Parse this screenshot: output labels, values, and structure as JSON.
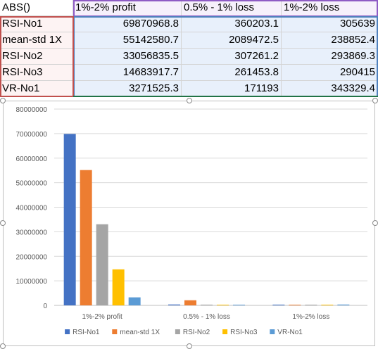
{
  "table": {
    "corner": "ABS()",
    "columns": [
      "1%-2% profit",
      "0.5% - 1% loss",
      "1%-2% loss"
    ],
    "rows": [
      {
        "label": "RSI-No1",
        "values": [
          "69870968.8",
          "360203.1",
          "305639"
        ]
      },
      {
        "label": "mean-std 1X",
        "values": [
          "55142580.7",
          "2089472.5",
          "238852.4"
        ]
      },
      {
        "label": "RSI-No2",
        "values": [
          "33056835.5",
          "307261.2",
          "293869.3"
        ]
      },
      {
        "label": "RSI-No3",
        "values": [
          "14683917.7",
          "261453.8",
          "290415"
        ]
      },
      {
        "label": "VR-No1",
        "values": [
          "3271525.3",
          "171193",
          "343329.4"
        ]
      }
    ]
  },
  "chart_data": {
    "type": "bar",
    "title": "",
    "xlabel": "",
    "ylabel": "",
    "categories": [
      "1%-2% profit",
      "0.5% - 1% loss",
      "1%-2% loss"
    ],
    "ylim": [
      0,
      80000000
    ],
    "yticks": [
      "0",
      "10000000",
      "20000000",
      "30000000",
      "40000000",
      "50000000",
      "60000000",
      "70000000",
      "80000000"
    ],
    "grid": true,
    "legend": "bottom",
    "series": [
      {
        "name": "RSI-No1",
        "color": "#4472c4",
        "values": [
          69870968.8,
          360203.1,
          305639
        ]
      },
      {
        "name": "mean-std 1X",
        "color": "#ed7d31",
        "values": [
          55142580.7,
          2089472.5,
          238852.4
        ]
      },
      {
        "name": "RSI-No2",
        "color": "#a5a5a5",
        "values": [
          33056835.5,
          307261.2,
          293869.3
        ]
      },
      {
        "name": "RSI-No3",
        "color": "#ffc000",
        "values": [
          14683917.7,
          261453.8,
          290415
        ]
      },
      {
        "name": "VR-No1",
        "color": "#5b9bd5",
        "values": [
          3271525.3,
          171193,
          343329.4
        ]
      }
    ]
  }
}
